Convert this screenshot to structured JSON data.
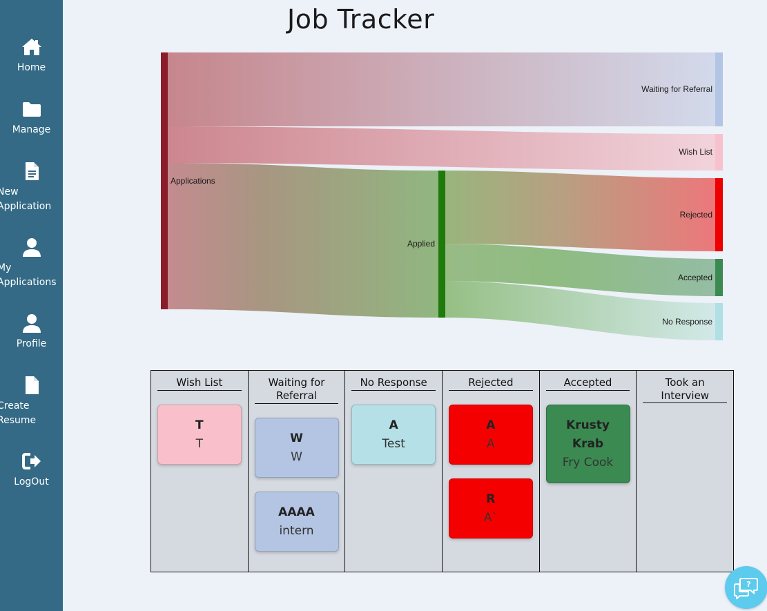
{
  "sidebar": {
    "items": [
      {
        "label": "Home",
        "icon": "home-icon"
      },
      {
        "label": "Manage",
        "icon": "folder-icon"
      },
      {
        "label": "New Application",
        "icon": "document-icon"
      },
      {
        "label": "My Applications",
        "icon": "user-icon"
      },
      {
        "label": "Profile",
        "icon": "user-icon"
      },
      {
        "label": "Create Resume",
        "icon": "file-icon"
      },
      {
        "label": "LogOut",
        "icon": "logout-icon"
      }
    ],
    "background": "#346a86"
  },
  "page": {
    "title": "Job Tracker"
  },
  "chart_data": {
    "type": "sankey",
    "nodes": [
      "Applications",
      "Applied",
      "Waiting for Referral",
      "Wish List",
      "Rejected",
      "Accepted",
      "No Response"
    ],
    "links": [
      {
        "source": "Applications",
        "target": "Waiting for Referral",
        "value": 2
      },
      {
        "source": "Applications",
        "target": "Wish List",
        "value": 1
      },
      {
        "source": "Applications",
        "target": "Applied",
        "value": 4
      },
      {
        "source": "Applied",
        "target": "Rejected",
        "value": 2
      },
      {
        "source": "Applied",
        "target": "Accepted",
        "value": 1
      },
      {
        "source": "Applied",
        "target": "No Response",
        "value": 1
      }
    ],
    "colors": {
      "Applications": "#8b1c2a",
      "Applied": "#1e7a0a",
      "Waiting for Referral": "#b3c5e4",
      "Wish List": "#f7c1cd",
      "Rejected": "#ee0000",
      "Accepted": "#3a8a52",
      "No Response": "#b0dfe6"
    }
  },
  "board": {
    "columns": [
      {
        "title": "Wish List",
        "cards": [
          {
            "title": "T",
            "subtitle": "T",
            "color": "#f9c0cb"
          }
        ]
      },
      {
        "title": "Waiting for Referral",
        "cards": [
          {
            "title": "W",
            "subtitle": "W",
            "color": "#b3c5e3"
          },
          {
            "title": "AAAA",
            "subtitle": "intern",
            "color": "#b3c5e3"
          }
        ]
      },
      {
        "title": "No Response",
        "cards": [
          {
            "title": "A",
            "subtitle": "Test",
            "color": "#b5e0e7"
          }
        ]
      },
      {
        "title": "Rejected",
        "cards": [
          {
            "title": "A",
            "subtitle": "A",
            "color": "#f50000"
          },
          {
            "title": "R",
            "subtitle": "A`",
            "color": "#f50000"
          }
        ]
      },
      {
        "title": "Accepted",
        "cards": [
          {
            "title": "Krusty Krab",
            "subtitle": "Fry Cook",
            "color": "#3b8a51"
          }
        ]
      },
      {
        "title": "Took an Interview",
        "cards": []
      }
    ]
  },
  "chat": {
    "icon": "chat-help-icon",
    "color": "#5ccbee"
  }
}
